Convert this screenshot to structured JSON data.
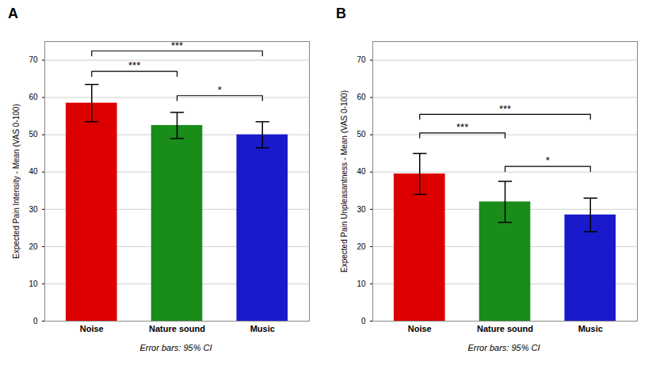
{
  "chart_data": [
    {
      "type": "bar",
      "title": "A",
      "categories": [
        "Noise",
        "Nature sound",
        "Music"
      ],
      "values": [
        58.5,
        52.5,
        50.0
      ],
      "errors": [
        5.0,
        3.5,
        3.5
      ],
      "colors": [
        "#dd0000",
        "#1a8c1a",
        "#1a1acc"
      ],
      "ylabel": "Expected Pain Intensity - Mean (VAS 0-100)",
      "ylim": [
        0,
        75
      ],
      "yticks": [
        0,
        10,
        20,
        30,
        40,
        50,
        60,
        70
      ],
      "grid": true,
      "significance": [
        {
          "from": "Noise",
          "to": "Nature sound",
          "y": 67.0,
          "label": "***"
        },
        {
          "from": "Noise",
          "to": "Music",
          "y": 72.5,
          "label": "***"
        },
        {
          "from": "Nature sound",
          "to": "Music",
          "y": 60.5,
          "label": "*"
        }
      ],
      "annotations": [
        "Error bars: 95% CI"
      ]
    },
    {
      "type": "bar",
      "title": "B",
      "categories": [
        "Noise",
        "Nature sound",
        "Music"
      ],
      "values": [
        39.5,
        32.0,
        28.5
      ],
      "errors": [
        5.5,
        5.5,
        4.5
      ],
      "colors": [
        "#dd0000",
        "#1a8c1a",
        "#1a1acc"
      ],
      "ylabel": "Expected Pain Unpleasantness - Mean (VAS 0-100)",
      "ylim": [
        0,
        75
      ],
      "yticks": [
        0,
        10,
        20,
        30,
        40,
        50,
        60,
        70
      ],
      "grid": true,
      "significance": [
        {
          "from": "Noise",
          "to": "Nature sound",
          "y": 50.5,
          "label": "***"
        },
        {
          "from": "Noise",
          "to": "Music",
          "y": 55.5,
          "label": "***"
        },
        {
          "from": "Nature sound",
          "to": "Music",
          "y": 41.5,
          "label": "*"
        }
      ],
      "annotations": [
        "Error bars: 95% CI"
      ]
    }
  ]
}
